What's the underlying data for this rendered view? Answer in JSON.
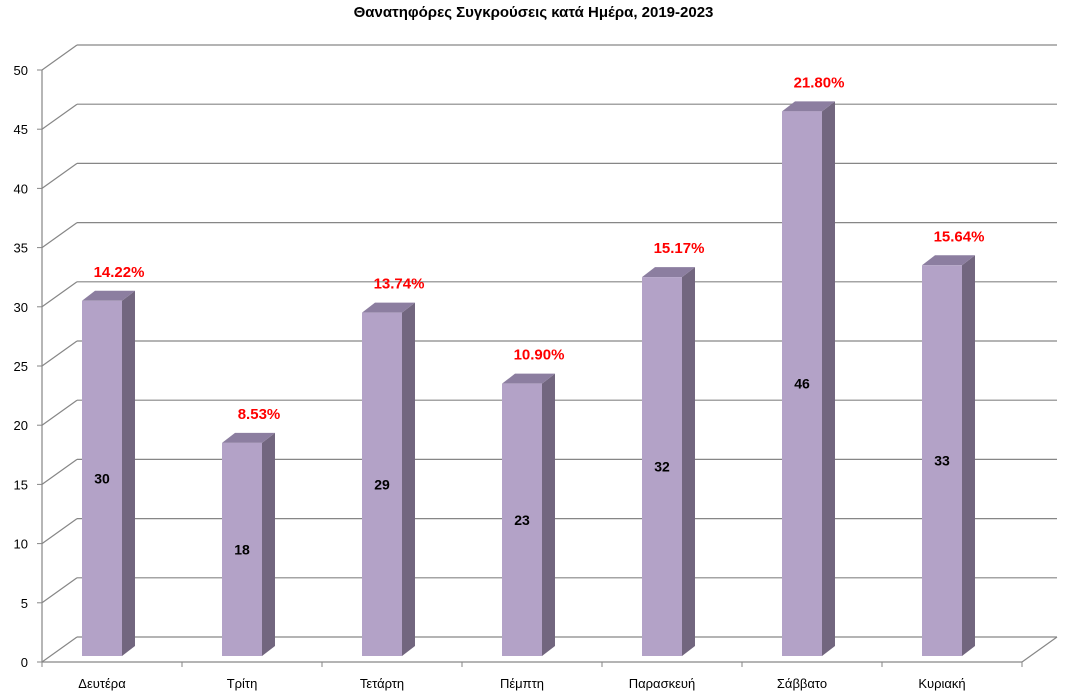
{
  "chart_data": {
    "type": "bar",
    "title": "Θανατηφόρες Συγκρούσεις κατά Ημέρα, 2019-2023",
    "categories": [
      "Δευτέρα",
      "Τρίτη",
      "Τετάρτη",
      "Πέμπτη",
      "Παρασκευή",
      "Σάββατο",
      "Κυριακή"
    ],
    "values": [
      30,
      18,
      29,
      23,
      32,
      46,
      33
    ],
    "percent_labels": [
      "14.22%",
      "8.53%",
      "13.74%",
      "10.90%",
      "15.17%",
      "21.80%",
      "15.64%"
    ],
    "ylim": [
      0,
      50
    ],
    "yticks": [
      0,
      5,
      10,
      15,
      20,
      25,
      30,
      35,
      40,
      45,
      50
    ],
    "xlabel": "",
    "ylabel": "",
    "grid": true,
    "legend": "none",
    "colors": {
      "front": "#B3A2C7",
      "side": "#72667F",
      "top": "#8C7EA0",
      "percent": "#FF0000",
      "grid": "#868686"
    }
  }
}
